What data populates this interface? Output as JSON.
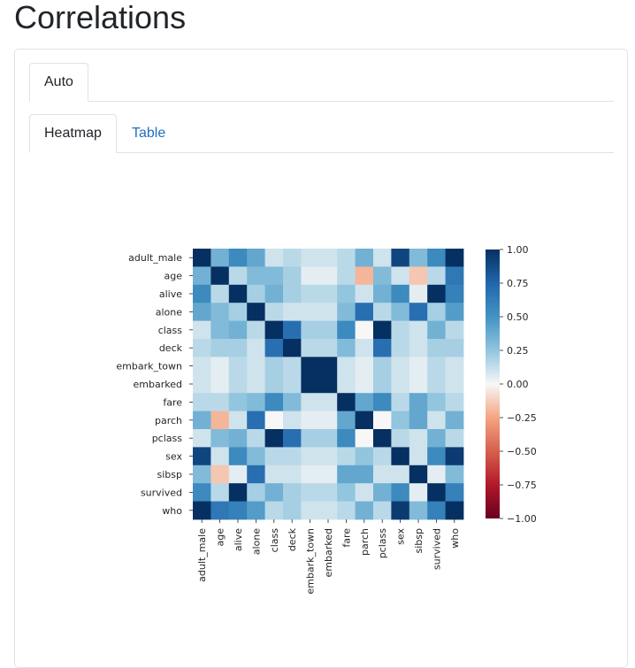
{
  "page": {
    "title": "Correlations"
  },
  "tabs_outer": [
    {
      "label": "Auto",
      "active": true
    }
  ],
  "tabs_inner": [
    {
      "label": "Heatmap",
      "active": true
    },
    {
      "label": "Table",
      "active": false
    }
  ],
  "colors": {
    "negative": "#67001f",
    "neutral": "#f7f7f7",
    "positive": "#053061",
    "link": "#1f6fc0"
  },
  "chart_data": {
    "type": "heatmap",
    "title": "",
    "xlabel": "",
    "ylabel": "",
    "colorscale": "RdBu",
    "vmin": -1,
    "vmax": 1,
    "colorbar_ticks": [
      "1.00",
      "0.75",
      "0.50",
      "0.25",
      "0.00",
      "−0.25",
      "−0.50",
      "−0.75",
      "−1.00"
    ],
    "colorbar_tick_values": [
      1,
      0.75,
      0.5,
      0.25,
      0,
      -0.25,
      -0.5,
      -0.75,
      -1
    ],
    "labels": [
      "adult_male",
      "age",
      "alive",
      "alone",
      "class",
      "deck",
      "embark_town",
      "embarked",
      "fare",
      "parch",
      "pclass",
      "sex",
      "sibsp",
      "survived",
      "who"
    ],
    "values": [
      [
        1.0,
        0.35,
        0.55,
        0.4,
        0.1,
        0.15,
        0.1,
        0.1,
        0.15,
        0.35,
        0.1,
        0.9,
        0.3,
        0.55,
        1.0
      ],
      [
        0.35,
        1.0,
        0.15,
        0.3,
        0.3,
        0.2,
        0.05,
        0.05,
        0.15,
        -0.2,
        0.3,
        0.1,
        -0.15,
        0.15,
        0.65
      ],
      [
        0.55,
        0.15,
        1.0,
        0.2,
        0.35,
        0.2,
        0.15,
        0.15,
        0.25,
        0.1,
        0.35,
        0.55,
        0.05,
        1.0,
        0.6
      ],
      [
        0.4,
        0.3,
        0.2,
        1.0,
        0.15,
        0.1,
        0.1,
        0.1,
        0.3,
        0.7,
        0.15,
        0.3,
        0.7,
        0.2,
        0.45
      ],
      [
        0.1,
        0.3,
        0.35,
        0.15,
        1.0,
        0.7,
        0.2,
        0.2,
        0.55,
        0.0,
        1.0,
        0.15,
        0.1,
        0.35,
        0.15
      ],
      [
        0.15,
        0.2,
        0.2,
        0.1,
        0.7,
        1.0,
        0.15,
        0.15,
        0.3,
        0.1,
        0.7,
        0.15,
        0.1,
        0.2,
        0.2
      ],
      [
        0.1,
        0.05,
        0.15,
        0.1,
        0.2,
        0.15,
        1.0,
        1.0,
        0.1,
        0.05,
        0.2,
        0.1,
        0.05,
        0.15,
        0.1
      ],
      [
        0.1,
        0.05,
        0.15,
        0.1,
        0.2,
        0.15,
        1.0,
        1.0,
        0.1,
        0.05,
        0.2,
        0.1,
        0.05,
        0.15,
        0.1
      ],
      [
        0.15,
        0.15,
        0.25,
        0.3,
        0.55,
        0.3,
        0.1,
        0.1,
        1.0,
        0.4,
        0.55,
        0.15,
        0.4,
        0.25,
        0.15
      ],
      [
        0.35,
        -0.2,
        0.1,
        0.7,
        0.0,
        0.1,
        0.05,
        0.05,
        0.4,
        1.0,
        0.0,
        0.25,
        0.4,
        0.1,
        0.35
      ],
      [
        0.1,
        0.3,
        0.35,
        0.15,
        1.0,
        0.7,
        0.2,
        0.2,
        0.55,
        0.0,
        1.0,
        0.15,
        0.1,
        0.35,
        0.15
      ],
      [
        0.9,
        0.1,
        0.55,
        0.3,
        0.15,
        0.15,
        0.1,
        0.1,
        0.15,
        0.25,
        0.15,
        1.0,
        0.1,
        0.55,
        0.95
      ],
      [
        0.3,
        -0.15,
        0.05,
        0.7,
        0.1,
        0.1,
        0.05,
        0.05,
        0.4,
        0.4,
        0.1,
        0.1,
        1.0,
        0.05,
        0.3
      ],
      [
        0.55,
        0.15,
        1.0,
        0.2,
        0.35,
        0.2,
        0.15,
        0.15,
        0.25,
        0.1,
        0.35,
        0.55,
        0.05,
        1.0,
        0.6
      ],
      [
        1.0,
        0.65,
        0.6,
        0.45,
        0.15,
        0.2,
        0.1,
        0.1,
        0.15,
        0.35,
        0.15,
        0.95,
        0.3,
        0.6,
        1.0
      ]
    ]
  }
}
